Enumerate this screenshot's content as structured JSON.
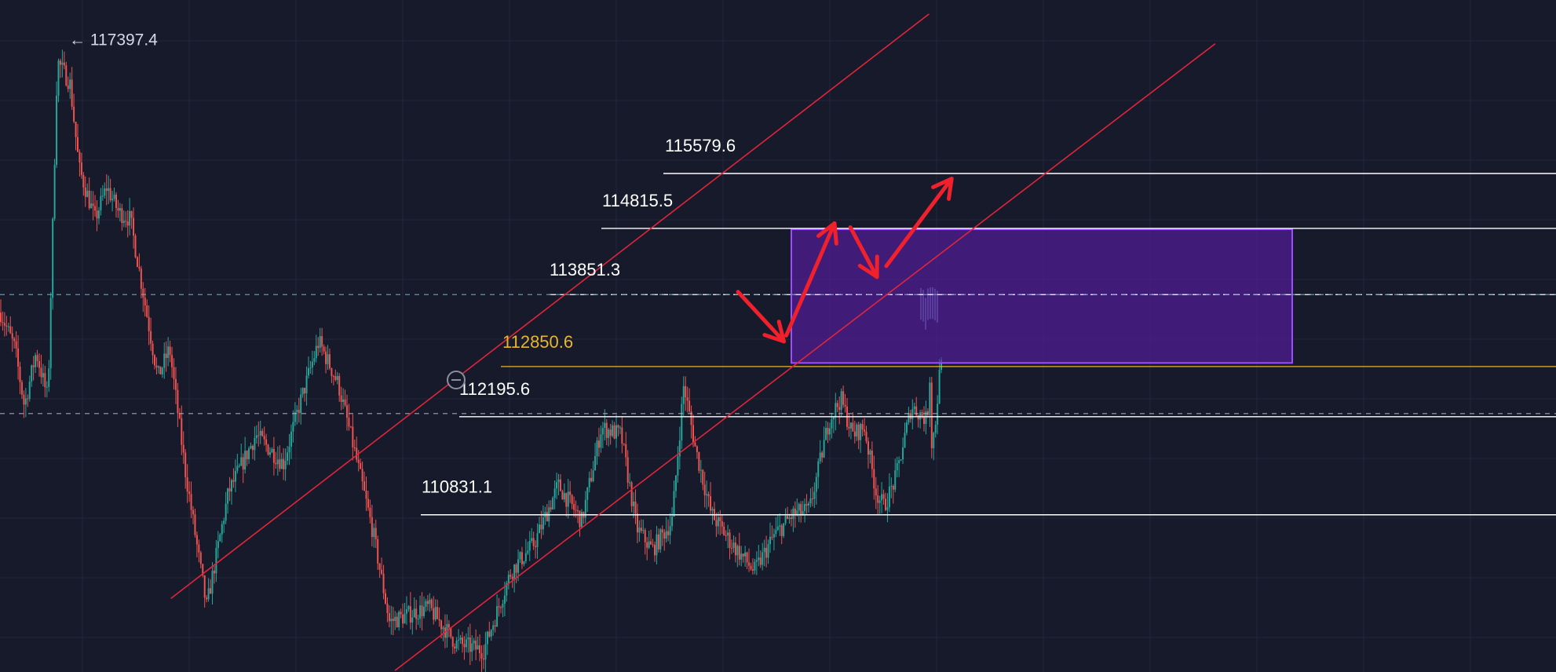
{
  "chart_data": {
    "type": "candlestick",
    "y_axis": {
      "ylim": [
        108600,
        117950
      ]
    },
    "colors": {
      "background": "#161a2b",
      "grid": "#222739",
      "up_candle": "#26a69a",
      "down_candle": "#ef5350",
      "channel": "#e0253a",
      "arrow": "#f0202c",
      "level_line": "#ffffff",
      "gold_level": "#e8b52c",
      "teal_dashed": "#5bb8b0",
      "zone_fill": "#5a1fa8",
      "zone_border": "#9c4dff"
    },
    "high_marker": {
      "label": "← 117397.4",
      "value": 117397.4
    },
    "levels": [
      {
        "value": 115579.6,
        "label": "115579.6",
        "style": "solid-white"
      },
      {
        "value": 114815.5,
        "label": "114815.5",
        "style": "solid-white"
      },
      {
        "value": 113851.3,
        "label": "113851.3",
        "style": "dashed-white"
      },
      {
        "value": 112850.6,
        "label": "112850.6",
        "style": "solid-gold"
      },
      {
        "value": 112195.6,
        "label": "112195.6",
        "style": "solid-white"
      },
      {
        "value": 110831.1,
        "label": "110831.1",
        "style": "solid-white"
      }
    ],
    "dashed_lines": [
      {
        "value": 113851.3,
        "color": "teal"
      },
      {
        "value": 112195.6,
        "color": "white"
      }
    ],
    "zone": {
      "top": 114760,
      "bottom": 112900
    },
    "price_path": [
      {
        "x": 0,
        "y": 113600
      },
      {
        "x": 18,
        "y": 113100
      },
      {
        "x": 30,
        "y": 112300
      },
      {
        "x": 45,
        "y": 113050
      },
      {
        "x": 60,
        "y": 112400
      },
      {
        "x": 72,
        "y": 117100
      },
      {
        "x": 88,
        "y": 116800
      },
      {
        "x": 100,
        "y": 115600
      },
      {
        "x": 120,
        "y": 114900
      },
      {
        "x": 135,
        "y": 115350
      },
      {
        "x": 150,
        "y": 115000
      },
      {
        "x": 165,
        "y": 114900
      },
      {
        "x": 200,
        "y": 112700
      },
      {
        "x": 215,
        "y": 113100
      },
      {
        "x": 235,
        "y": 111400
      },
      {
        "x": 262,
        "y": 109500
      },
      {
        "x": 290,
        "y": 111100
      },
      {
        "x": 325,
        "y": 111900
      },
      {
        "x": 360,
        "y": 111500
      },
      {
        "x": 380,
        "y": 112300
      },
      {
        "x": 405,
        "y": 113200
      },
      {
        "x": 430,
        "y": 112600
      },
      {
        "x": 450,
        "y": 111700
      },
      {
        "x": 475,
        "y": 110500
      },
      {
        "x": 495,
        "y": 109300
      },
      {
        "x": 520,
        "y": 109400
      },
      {
        "x": 545,
        "y": 109500
      },
      {
        "x": 580,
        "y": 109000
      },
      {
        "x": 615,
        "y": 108900
      },
      {
        "x": 650,
        "y": 110000
      },
      {
        "x": 680,
        "y": 110400
      },
      {
        "x": 710,
        "y": 111200
      },
      {
        "x": 740,
        "y": 110700
      },
      {
        "x": 765,
        "y": 112000
      },
      {
        "x": 790,
        "y": 111900
      },
      {
        "x": 810,
        "y": 110600
      },
      {
        "x": 830,
        "y": 110300
      },
      {
        "x": 855,
        "y": 110700
      },
      {
        "x": 870,
        "y": 112600
      },
      {
        "x": 885,
        "y": 111700
      },
      {
        "x": 905,
        "y": 110800
      },
      {
        "x": 930,
        "y": 110400
      },
      {
        "x": 960,
        "y": 110000
      },
      {
        "x": 985,
        "y": 110500
      },
      {
        "x": 1010,
        "y": 110800
      },
      {
        "x": 1030,
        "y": 110850
      },
      {
        "x": 1055,
        "y": 112100
      },
      {
        "x": 1070,
        "y": 112400
      },
      {
        "x": 1085,
        "y": 111900
      },
      {
        "x": 1100,
        "y": 112000
      },
      {
        "x": 1115,
        "y": 111100
      },
      {
        "x": 1125,
        "y": 110900
      },
      {
        "x": 1140,
        "y": 111300
      },
      {
        "x": 1160,
        "y": 112300
      },
      {
        "x": 1180,
        "y": 112100
      },
      {
        "x": 1185,
        "y": 113000
      },
      {
        "x": 1170,
        "y": 111000
      },
      {
        "x": 1190,
        "y": 112000
      },
      {
        "x": 1200,
        "y": 113300
      },
      {
        "x": 1210,
        "y": 112800
      },
      {
        "x": 1212,
        "y": 113600
      },
      {
        "x": 1218,
        "y": 113500
      },
      {
        "x": 1224,
        "y": 113400
      },
      {
        "x": 1230,
        "y": 113750
      },
      {
        "x": 1236,
        "y": 113600
      },
      {
        "x": 1242,
        "y": 113700
      },
      {
        "x": 1250,
        "y": 113650
      },
      {
        "x": 1258,
        "y": 113600
      }
    ],
    "channel_lines": [
      {
        "x1": 0.1098,
        "y1": 0.8906,
        "x2": 0.5971,
        "y2": 0.0207
      },
      {
        "x1": 0.2538,
        "y1": 0.9978,
        "x2": 0.781,
        "y2": 0.065
      }
    ],
    "arrows": [
      {
        "from": [
          0.4743,
          0.4343
        ],
        "to": [
          0.5038,
          0.5081
        ]
      },
      {
        "from": [
          0.5053,
          0.4993
        ],
        "to": [
          0.5363,
          0.3323
        ]
      },
      {
        "from": [
          0.5465,
          0.3382
        ],
        "to": [
          0.5636,
          0.4121
        ]
      },
      {
        "from": [
          0.5696,
          0.3959
        ],
        "to": [
          0.6116,
          0.2659
        ]
      }
    ]
  }
}
